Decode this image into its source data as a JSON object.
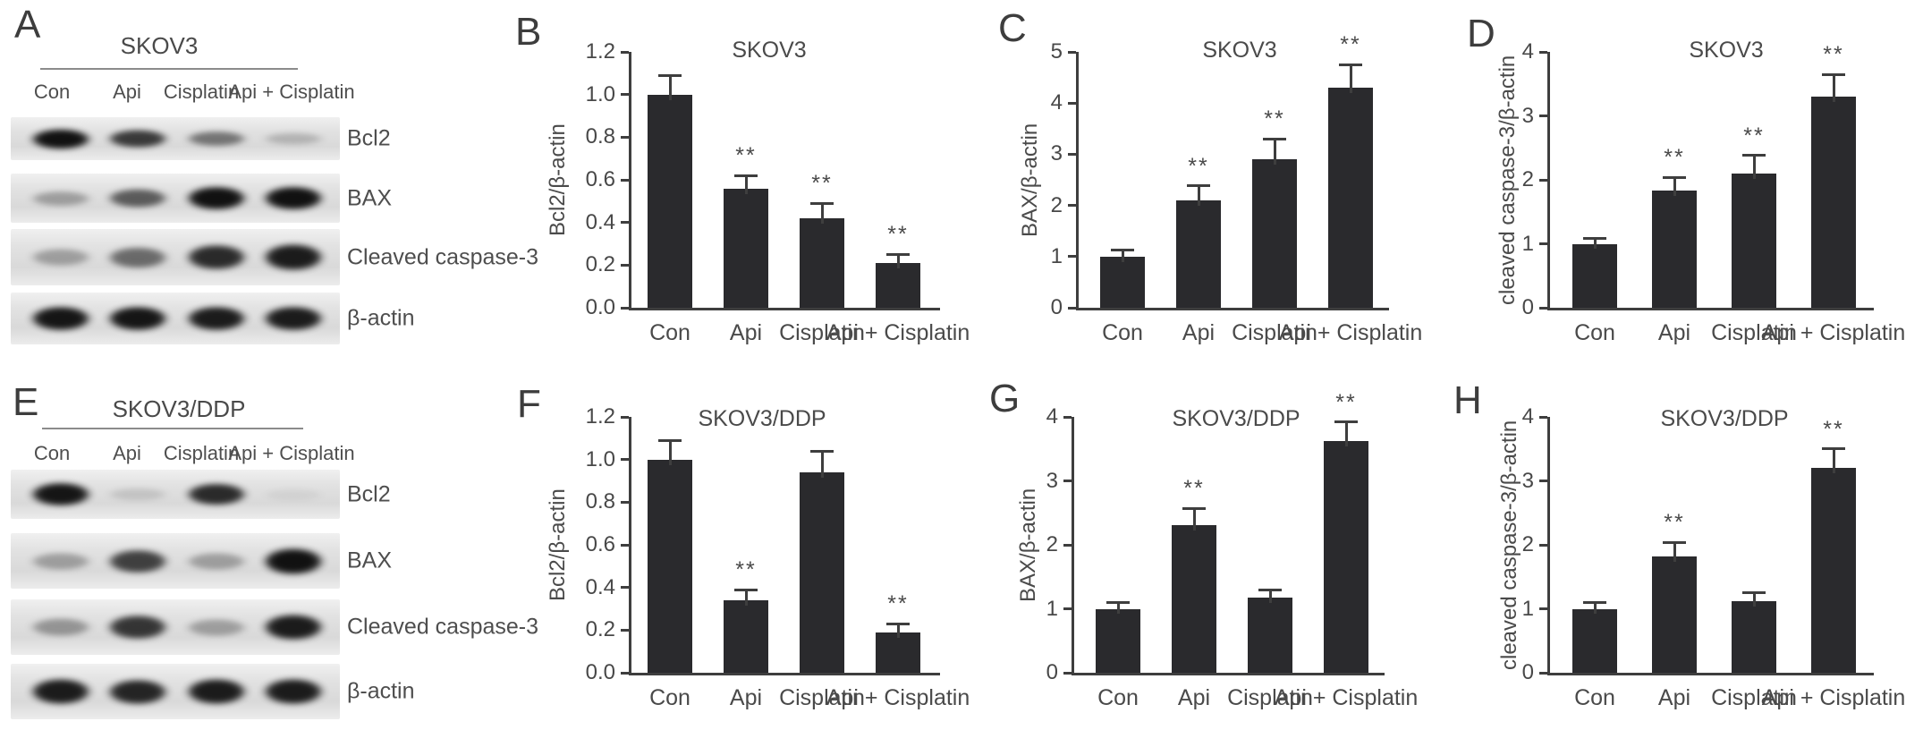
{
  "figure_type": "western-blot-and-densitometry-figure",
  "panel_letters": {
    "a": "A",
    "b": "B",
    "c": "C",
    "d": "D",
    "e": "E",
    "f": "F",
    "g": "G",
    "h": "H"
  },
  "categories": [
    "Con",
    "Api",
    "Cisplatin",
    "Api + Cisplatin"
  ],
  "colors": {
    "bar": "#2a2a2d",
    "axis": "#3e3e3e",
    "text": "#4a4a4a",
    "band": "#0b0b0b",
    "strip_bg": "#e2e2e2"
  },
  "blots": [
    {
      "panel": "A",
      "cell_line": "SKOV3",
      "lanes": [
        "Con",
        "Api",
        "Cisplatin",
        "Api + Cisplatin"
      ],
      "rows": [
        {
          "label": "Bcl2",
          "band_intensities": [
            0.97,
            0.78,
            0.5,
            0.2
          ]
        },
        {
          "label": "BAX",
          "band_intensities": [
            0.3,
            0.62,
            0.97,
            0.97
          ]
        },
        {
          "label": "Cleaved caspase-3",
          "band_intensities": [
            0.3,
            0.55,
            0.85,
            0.92
          ]
        },
        {
          "label": "β-actin",
          "band_intensities": [
            0.95,
            0.95,
            0.92,
            0.92
          ]
        }
      ]
    },
    {
      "panel": "E",
      "cell_line": "SKOV3/DDP",
      "lanes": [
        "Con",
        "Api",
        "Cisplatin",
        "Api + Cisplatin"
      ],
      "rows": [
        {
          "label": "Bcl2",
          "band_intensities": [
            0.95,
            0.12,
            0.85,
            0.05
          ]
        },
        {
          "label": "BAX",
          "band_intensities": [
            0.3,
            0.75,
            0.3,
            0.97
          ]
        },
        {
          "label": "Cleaved caspase-3",
          "band_intensities": [
            0.35,
            0.8,
            0.3,
            0.92
          ]
        },
        {
          "label": "β-actin",
          "band_intensities": [
            0.92,
            0.88,
            0.92,
            0.92
          ]
        }
      ]
    }
  ],
  "chart_data": [
    {
      "panel": "B",
      "type": "bar",
      "title": "SKOV3",
      "ylabel": "Bcl2/β-actin",
      "xlabel": "",
      "categories": [
        "Con",
        "Api",
        "Cisplatin",
        "Api + Cisplatin"
      ],
      "values": [
        1.0,
        0.56,
        0.42,
        0.21
      ],
      "errors": [
        0.09,
        0.06,
        0.07,
        0.04
      ],
      "significance": [
        "",
        "**",
        "**",
        "**"
      ],
      "ylim": [
        0,
        1.2
      ],
      "yticks": [
        0,
        0.2,
        0.4,
        0.6,
        0.8,
        1.0,
        1.2
      ],
      "ytick_labels": [
        "0.0",
        "0.2",
        "0.4",
        "0.6",
        "0.8",
        "1.0",
        "1.2"
      ],
      "grid": false,
      "legend": "none"
    },
    {
      "panel": "C",
      "type": "bar",
      "title": "SKOV3",
      "ylabel": "BAX/β-actin",
      "xlabel": "",
      "categories": [
        "Con",
        "Api",
        "Cisplatin",
        "Api + Cisplatin"
      ],
      "values": [
        1.0,
        2.1,
        2.9,
        4.3
      ],
      "errors": [
        0.12,
        0.28,
        0.4,
        0.45
      ],
      "significance": [
        "",
        "**",
        "**",
        "**"
      ],
      "ylim": [
        0,
        5
      ],
      "yticks": [
        0,
        1,
        2,
        3,
        4,
        5
      ],
      "ytick_labels": [
        "0",
        "1",
        "2",
        "3",
        "4",
        "5"
      ],
      "grid": false,
      "legend": "none"
    },
    {
      "panel": "D",
      "type": "bar",
      "title": "SKOV3",
      "ylabel": "cleaved caspase-3/β-actin",
      "xlabel": "",
      "categories": [
        "Con",
        "Api",
        "Cisplatin",
        "Api + Cisplatin"
      ],
      "values": [
        1.0,
        1.83,
        2.1,
        3.3
      ],
      "errors": [
        0.08,
        0.21,
        0.28,
        0.35
      ],
      "significance": [
        "",
        "**",
        "**",
        "**"
      ],
      "ylim": [
        0,
        4
      ],
      "yticks": [
        0,
        1,
        2,
        3,
        4
      ],
      "ytick_labels": [
        "0",
        "1",
        "2",
        "3",
        "4"
      ],
      "grid": false,
      "legend": "none"
    },
    {
      "panel": "F",
      "type": "bar",
      "title": "SKOV3/DDP",
      "ylabel": "Bcl2/β-actin",
      "xlabel": "",
      "categories": [
        "Con",
        "Api",
        "Cisplatin",
        "Api + Cisplatin"
      ],
      "values": [
        1.0,
        0.34,
        0.94,
        0.19
      ],
      "errors": [
        0.09,
        0.05,
        0.1,
        0.04
      ],
      "significance": [
        "",
        "**",
        "",
        "**"
      ],
      "ylim": [
        0,
        1.2
      ],
      "yticks": [
        0,
        0.2,
        0.4,
        0.6,
        0.8,
        1.0,
        1.2
      ],
      "ytick_labels": [
        "0.0",
        "0.2",
        "0.4",
        "0.6",
        "0.8",
        "1.0",
        "1.2"
      ],
      "grid": false,
      "legend": "none"
    },
    {
      "panel": "G",
      "type": "bar",
      "title": "SKOV3/DDP",
      "ylabel": "BAX/β-actin",
      "xlabel": "",
      "categories": [
        "Con",
        "Api",
        "Cisplatin",
        "Api + Cisplatin"
      ],
      "values": [
        1.0,
        2.31,
        1.17,
        3.62
      ],
      "errors": [
        0.1,
        0.26,
        0.13,
        0.3
      ],
      "significance": [
        "",
        "**",
        "",
        "**"
      ],
      "ylim": [
        0,
        4
      ],
      "yticks": [
        0,
        1,
        2,
        3,
        4
      ],
      "ytick_labels": [
        "0",
        "1",
        "2",
        "3",
        "4"
      ],
      "grid": false,
      "legend": "none"
    },
    {
      "panel": "H",
      "type": "bar",
      "title": "SKOV3/DDP",
      "ylabel": "cleaved caspase-3/β-actin",
      "xlabel": "",
      "categories": [
        "Con",
        "Api",
        "Cisplatin",
        "Api + Cisplatin"
      ],
      "values": [
        1.0,
        1.82,
        1.12,
        3.2
      ],
      "errors": [
        0.1,
        0.22,
        0.13,
        0.3
      ],
      "significance": [
        "",
        "**",
        "",
        "**"
      ],
      "ylim": [
        0,
        4
      ],
      "yticks": [
        0,
        1,
        2,
        3,
        4
      ],
      "ytick_labels": [
        "0",
        "1",
        "2",
        "3",
        "4"
      ],
      "grid": false,
      "legend": "none"
    }
  ]
}
